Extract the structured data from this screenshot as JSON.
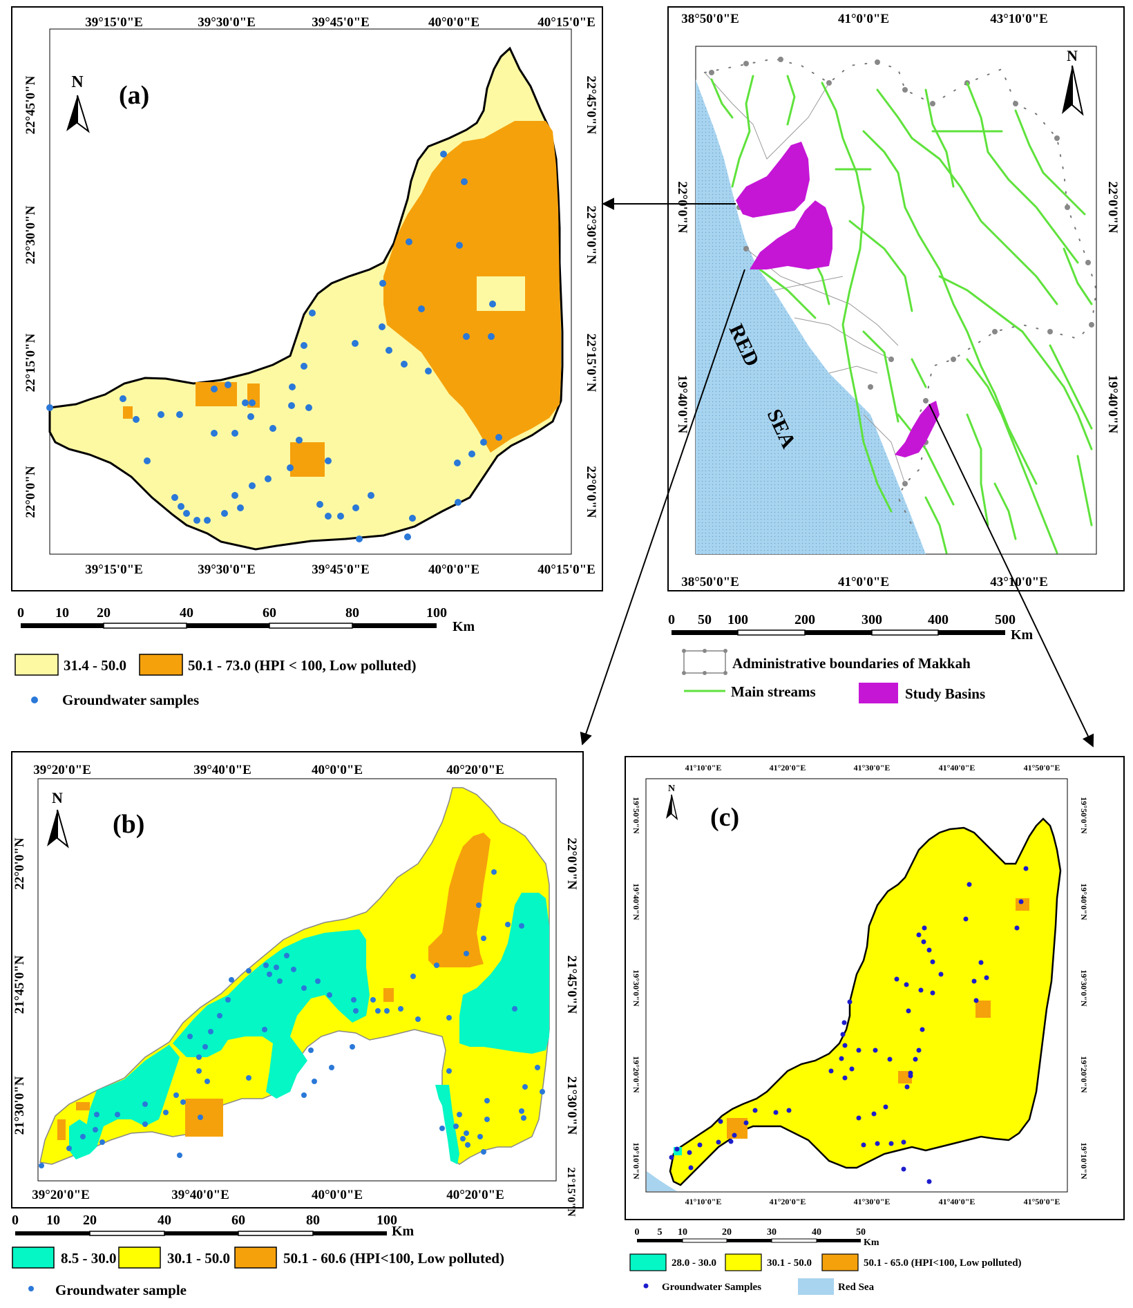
{
  "panel_a": {
    "label": "(a)",
    "north": "N",
    "lon_labels": [
      "39°15'0\"E",
      "39°30'0\"E",
      "39°45'0\"E",
      "40°0'0\"E",
      "40°15'0\"E"
    ],
    "lat_labels": [
      "22°45'0\"N",
      "22°30'0\"N",
      "22°15'0\"N",
      "22°0'0\"N"
    ],
    "scale": {
      "ticks": [
        "0",
        "10",
        "20",
        "40",
        "60",
        "80",
        "100"
      ],
      "unit": "Km"
    },
    "legend": {
      "class1": "31.4 - 50.0",
      "class2": "50.1 - 73.0 (HPI < 100, Low polluted)",
      "samples": "Groundwater samples"
    },
    "colors": {
      "class1": "#fdf9a3",
      "class2": "#f5a10c",
      "sample": "#2a78d8"
    }
  },
  "overview": {
    "north": "N",
    "lon_labels": [
      "38°50'0\"E",
      "41°0'0\"E",
      "43°10'0\"E"
    ],
    "lat_labels": [
      "22°0'0\"N",
      "19°40'0\"N"
    ],
    "sea_label_1": "RED",
    "sea_label_2": "SEA",
    "scale": {
      "ticks": [
        "0",
        "50",
        "100",
        "200",
        "300",
        "400",
        "500"
      ],
      "unit": "Km"
    },
    "legend": {
      "boundaries": "Administrative boundaries of Makkah",
      "streams": "Main streams",
      "basins": "Study Basins"
    },
    "colors": {
      "sea": "#a8d4f0",
      "streams": "#5fe23c",
      "basins": "#c516d6",
      "boundary": "#777777"
    }
  },
  "panel_b": {
    "label": "(b)",
    "north": "N",
    "lon_labels": [
      "39°20'0\"E",
      "39°40'0\"E",
      "40°0'0\"E",
      "40°20'0\"E"
    ],
    "lat_labels": [
      "22°0'0\"N",
      "21°45'0\"N",
      "21°30'0\"N",
      "21°15'0\"N"
    ],
    "scale": {
      "ticks": [
        "0",
        "10",
        "20",
        "40",
        "60",
        "80",
        "100"
      ],
      "unit": "Km"
    },
    "legend": {
      "class1": "8.5 - 30.0",
      "class2": "30.1 - 50.0",
      "class3": "50.1 - 60.6 (HPI<100, Low polluted)",
      "samples": "Groundwater sample"
    },
    "colors": {
      "class1": "#04f7c5",
      "class2": "#ffff00",
      "class3": "#f5a10c",
      "sample": "#2a78d8"
    }
  },
  "panel_c": {
    "label": "(c)",
    "north": "N",
    "lon_labels": [
      "41°10'0\"E",
      "41°20'0\"E",
      "41°30'0\"E",
      "41°40'0\"E",
      "41°50'0\"E"
    ],
    "lat_labels": [
      "19°50'0\"N",
      "19°40'0\"N",
      "19°30'0\"N",
      "19°20'0\"N",
      "19°10'0\"N"
    ],
    "scale": {
      "ticks": [
        "0",
        "5",
        "10",
        "20",
        "30",
        "40",
        "50"
      ],
      "unit": "Km"
    },
    "legend": {
      "class1": "28.0 - 30.0",
      "class2": "30.1 - 50.0",
      "class3": "50.1 - 65.0 (HPI<100, Low polluted)",
      "samples": "Groundwater Samples",
      "sea": "Red Sea"
    },
    "colors": {
      "class1": "#04f7c5",
      "class2": "#ffff00",
      "class3": "#f5a10c",
      "sample": "#1c1ccc",
      "sea": "#a8d4f0"
    }
  }
}
